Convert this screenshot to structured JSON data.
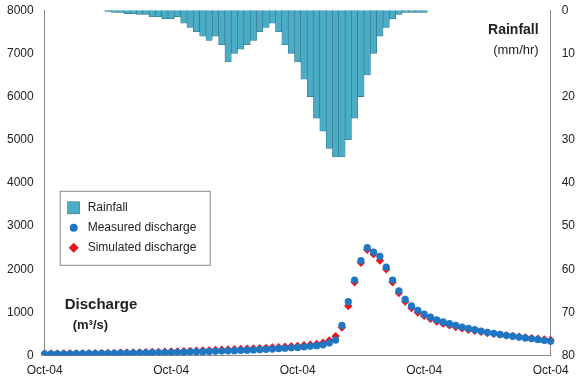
{
  "chart_data": {
    "type": "line",
    "categories": [
      "Oct-04",
      null,
      null,
      null,
      null,
      null,
      null,
      null,
      null,
      null,
      null,
      null,
      null,
      null,
      null,
      null,
      null,
      null,
      null,
      null,
      "Oct-04",
      null,
      null,
      null,
      null,
      null,
      null,
      null,
      null,
      null,
      null,
      null,
      null,
      null,
      null,
      null,
      null,
      null,
      null,
      null,
      "Oct-04",
      null,
      null,
      null,
      null,
      null,
      null,
      null,
      null,
      null,
      null,
      null,
      null,
      null,
      null,
      null,
      null,
      null,
      null,
      null,
      "Oct-04",
      null,
      null,
      null,
      null,
      null,
      null,
      null,
      null,
      null,
      null,
      null,
      null,
      null,
      null,
      null,
      null,
      null,
      null,
      null,
      "Oct-04"
    ],
    "series": [
      {
        "name": "Rainfall",
        "type": "bar",
        "axis": "y2",
        "color": "#4bacc6",
        "values": [
          0,
          0,
          0,
          0,
          0,
          0,
          0,
          0,
          0,
          0,
          0.3,
          0.5,
          0.5,
          0.8,
          0.8,
          1,
          1,
          1.5,
          1.5,
          2,
          2,
          1.5,
          3,
          4,
          5,
          6,
          7,
          6,
          8,
          12,
          10,
          9,
          8,
          7,
          5,
          4,
          3,
          5,
          8,
          10,
          12,
          16,
          20,
          25,
          28,
          32,
          34,
          34,
          30,
          25,
          20,
          15,
          10,
          6,
          4,
          2,
          1,
          0.5,
          0.5,
          0.5,
          0.5,
          0,
          0,
          0,
          0,
          0,
          0,
          0,
          0,
          0,
          0,
          0,
          0,
          0,
          0,
          0,
          0,
          0,
          0,
          0,
          0
        ]
      },
      {
        "name": "Measured discharge",
        "type": "scatter",
        "marker": "circle",
        "color": "#1f77c4",
        "values": [
          40,
          40,
          40,
          42,
          42,
          44,
          45,
          46,
          48,
          50,
          52,
          54,
          56,
          58,
          60,
          62,
          65,
          68,
          70,
          72,
          75,
          78,
          80,
          84,
          88,
          92,
          96,
          100,
          105,
          110,
          115,
          120,
          126,
          132,
          138,
          145,
          152,
          160,
          170,
          180,
          190,
          200,
          215,
          230,
          250,
          290,
          360,
          700,
          1250,
          1750,
          2200,
          2500,
          2400,
          2300,
          2050,
          1750,
          1500,
          1300,
          1150,
          1050,
          960,
          890,
          830,
          780,
          740,
          700,
          660,
          630,
          600,
          570,
          540,
          515,
          490,
          470,
          450,
          430,
          410,
          390,
          370,
          350,
          330
        ]
      },
      {
        "name": "Simulated discharge",
        "type": "scatter",
        "marker": "diamond",
        "color": "#e8141e",
        "values": [
          45,
          45,
          46,
          47,
          48,
          50,
          52,
          54,
          56,
          58,
          60,
          63,
          66,
          69,
          72,
          75,
          78,
          82,
          86,
          90,
          94,
          98,
          102,
          107,
          112,
          117,
          122,
          128,
          134,
          140,
          146,
          152,
          158,
          165,
          172,
          180,
          188,
          196,
          205,
          215,
          225,
          238,
          252,
          270,
          300,
          350,
          450,
          650,
          1150,
          1700,
          2150,
          2450,
          2350,
          2200,
          2000,
          1700,
          1450,
          1250,
          1100,
          1000,
          920,
          850,
          790,
          740,
          700,
          660,
          630,
          600,
          575,
          550,
          525,
          505,
          485,
          465,
          450,
          435,
          420,
          405,
          390,
          375,
          360
        ]
      }
    ],
    "ylabel": [
      "Discharge",
      "(m³/s)"
    ],
    "y2label": [
      "Rainfall",
      "(mm/hr)"
    ],
    "ylim": [
      0,
      8000
    ],
    "yticks": [
      0,
      1000,
      2000,
      3000,
      4000,
      5000,
      6000,
      7000,
      8000
    ],
    "y2lim": [
      80,
      0
    ],
    "y2ticks": [
      0,
      10,
      20,
      30,
      40,
      50,
      60,
      70,
      80
    ],
    "grid": false,
    "legend": "left"
  }
}
